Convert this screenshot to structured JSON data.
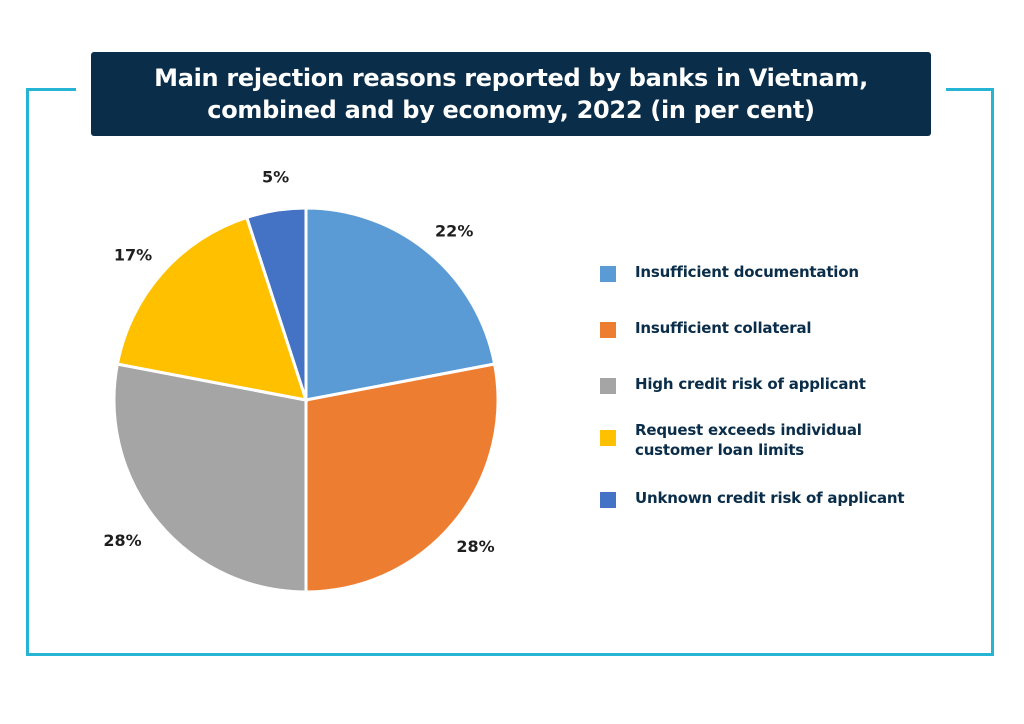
{
  "title": "Main rejection reasons reported by banks in Vietnam,\ncombined and by economy, 2022 (in per cent)",
  "chart_data": {
    "type": "pie",
    "title": "Main rejection reasons reported by banks in Vietnam, combined and by economy, 2022 (in per cent)",
    "unit": "%",
    "legend_position": "right",
    "slices": [
      {
        "label": "Insufficient documentation",
        "value": 22,
        "value_label": "22%",
        "color": "#5b9bd5"
      },
      {
        "label": "Insufficient collateral",
        "value": 28,
        "value_label": "28%",
        "color": "#ed7d31"
      },
      {
        "label": "High credit risk of applicant",
        "value": 28,
        "value_label": "28%",
        "color": "#a5a5a5"
      },
      {
        "label": "Request exceeds individual customer loan limits",
        "value": 17,
        "value_label": "17%",
        "color": "#ffc000"
      },
      {
        "label": "Unknown credit risk of applicant",
        "value": 5,
        "value_label": "5%",
        "color": "#4472c4"
      }
    ]
  },
  "legend": [
    {
      "label": "Insufficient documentation",
      "color": "#5b9bd5"
    },
    {
      "label": "Insufficient collateral",
      "color": "#ed7d31"
    },
    {
      "label": "High credit risk of applicant",
      "color": "#a5a5a5"
    },
    {
      "label": "Request exceeds individual customer loan limits",
      "color": "#ffc000"
    },
    {
      "label": "Unknown credit risk of applicant",
      "color": "#4472c4"
    }
  ]
}
